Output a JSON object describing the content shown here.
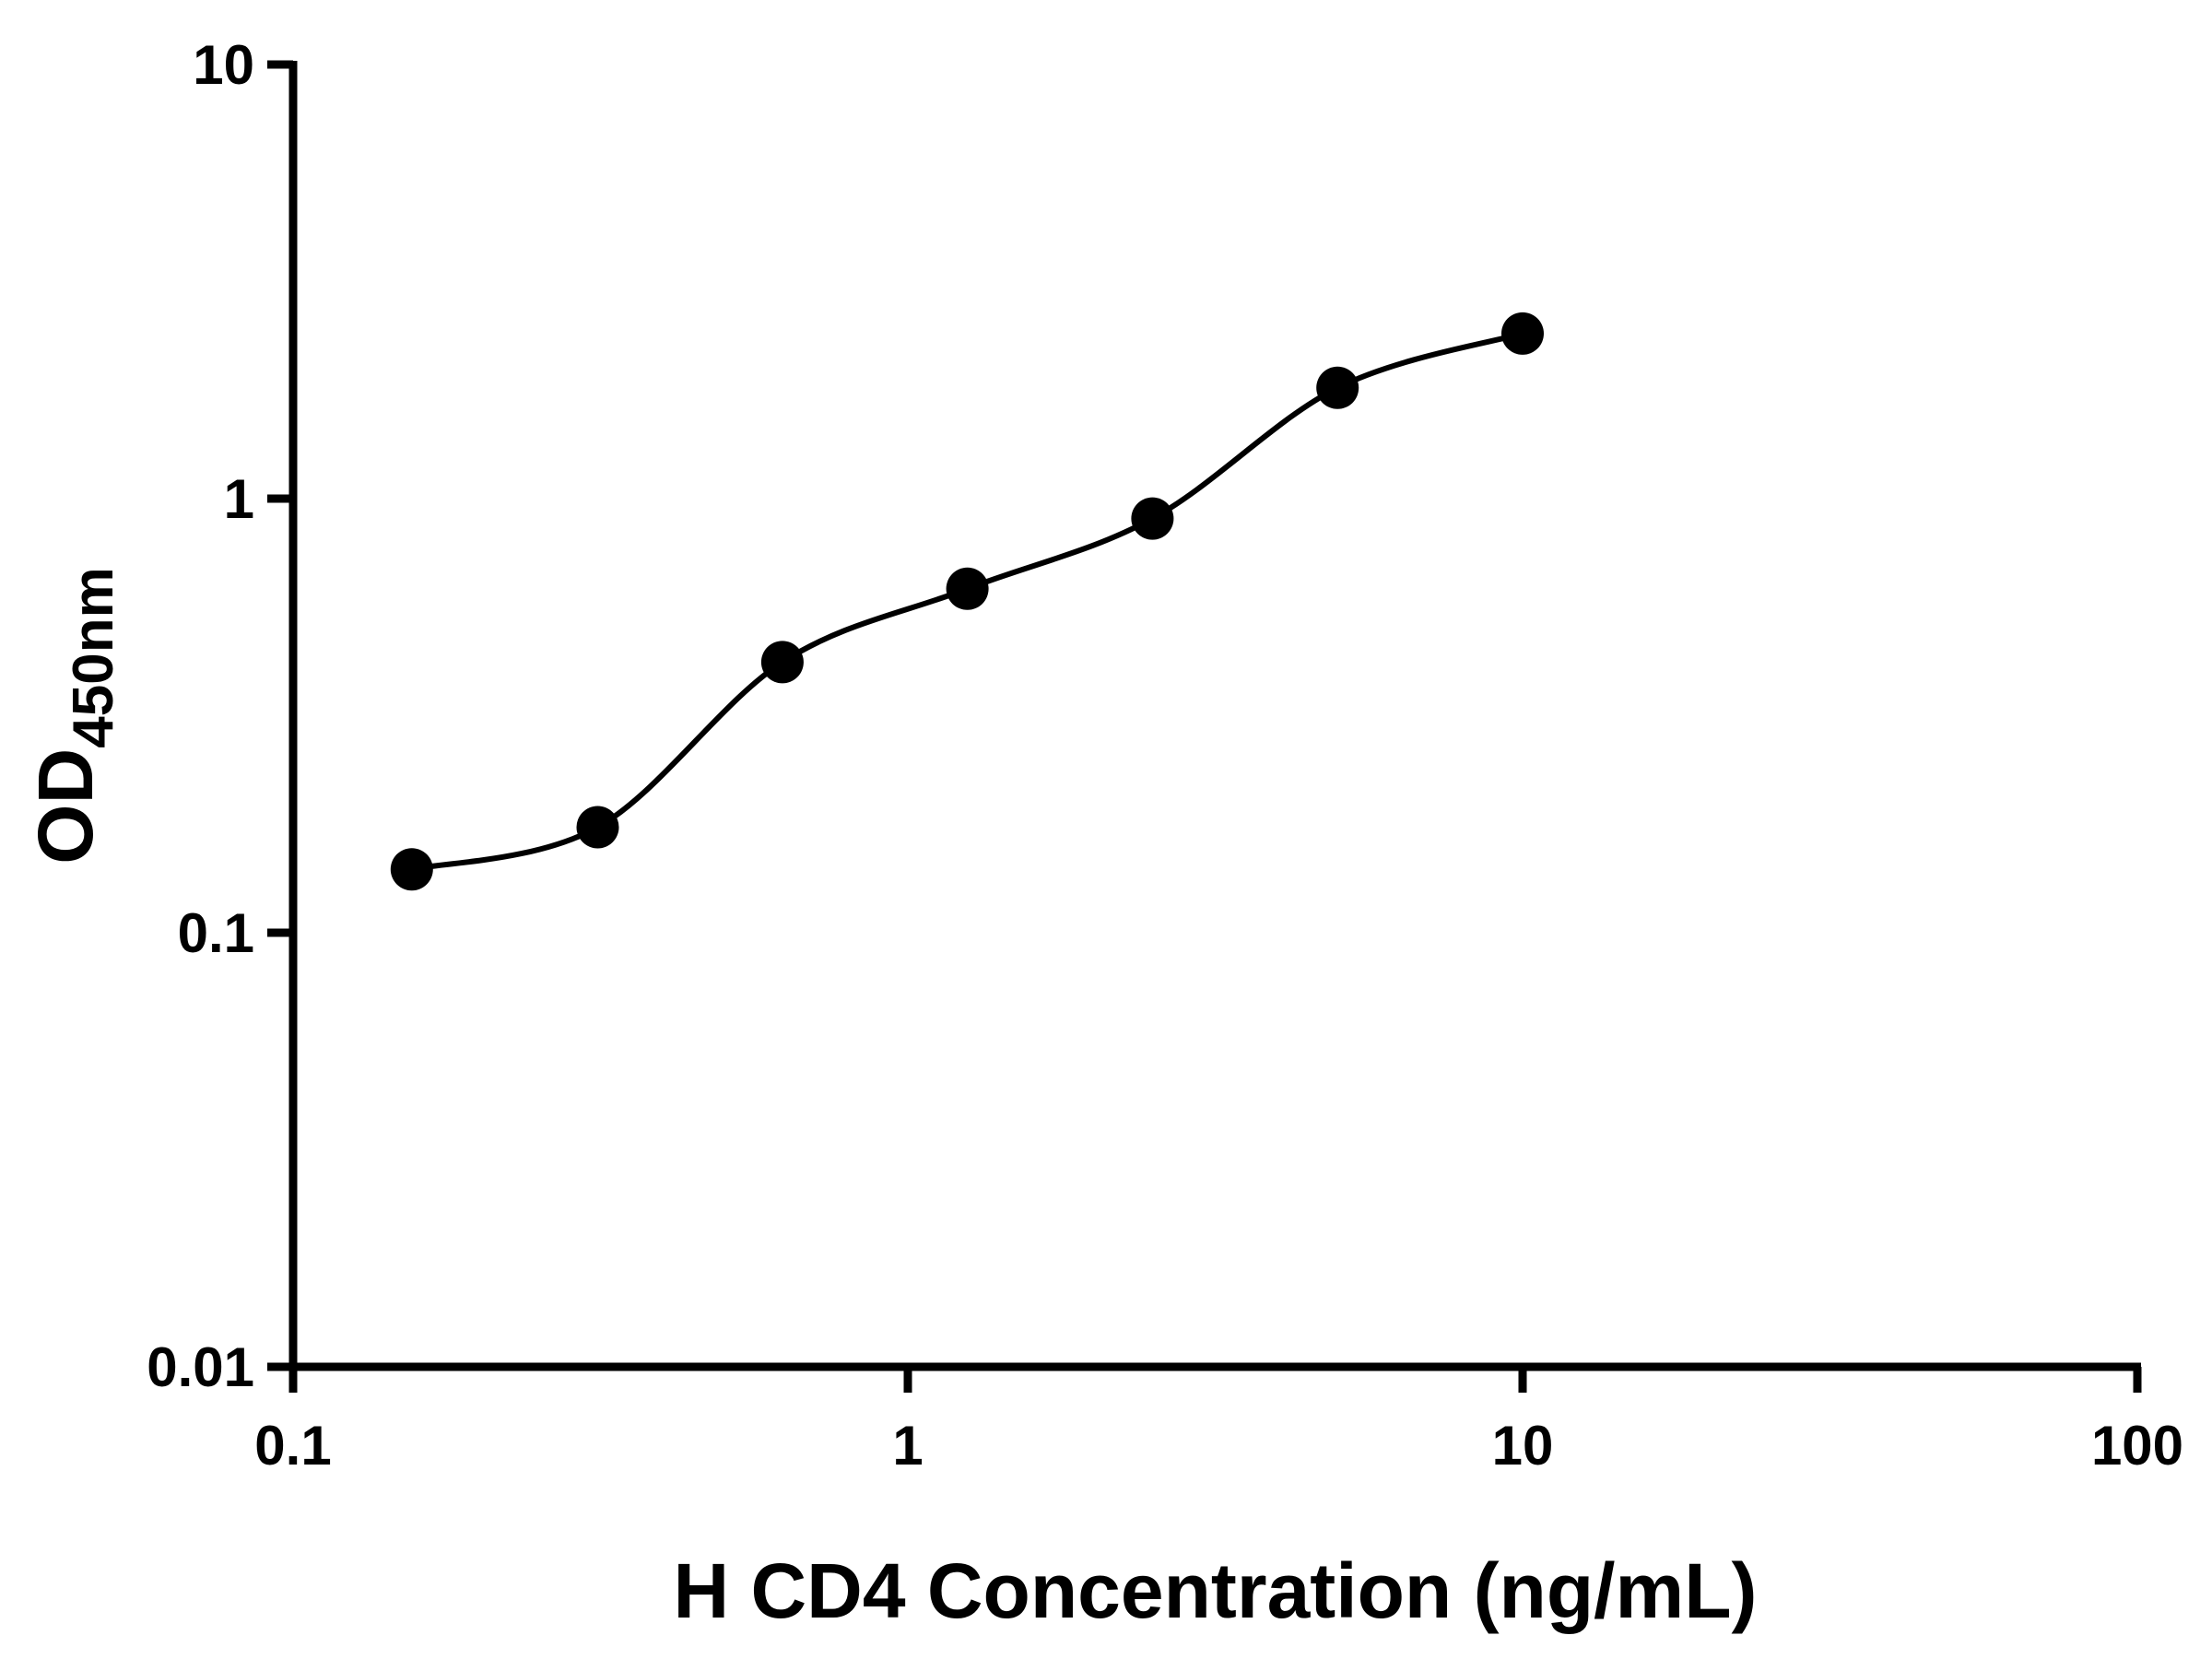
{
  "chart_data": {
    "type": "scatter",
    "title": "",
    "xlabel": "H CD4 Concentration (ng/mL)",
    "ylabel_main": "OD",
    "ylabel_sub": "450nm",
    "x_scale": "log",
    "y_scale": "log",
    "xlim": [
      0.1,
      100
    ],
    "ylim": [
      0.01,
      10
    ],
    "x_ticks": [
      0.1,
      1,
      10,
      100
    ],
    "x_tick_labels": [
      "0.1",
      "1",
      "10",
      "100"
    ],
    "y_ticks": [
      0.01,
      0.1,
      1,
      10
    ],
    "y_tick_labels": [
      "0.01",
      "0.1",
      "1",
      "10"
    ],
    "grid": false,
    "legend": "none",
    "has_fit_line": true,
    "x": [
      0.156,
      0.313,
      0.625,
      1.25,
      2.5,
      5,
      10
    ],
    "y": [
      0.14,
      0.175,
      0.42,
      0.62,
      0.9,
      1.8,
      2.4
    ],
    "marker_color": "#000000",
    "line_color": "#000000",
    "background_color": "#ffffff"
  }
}
